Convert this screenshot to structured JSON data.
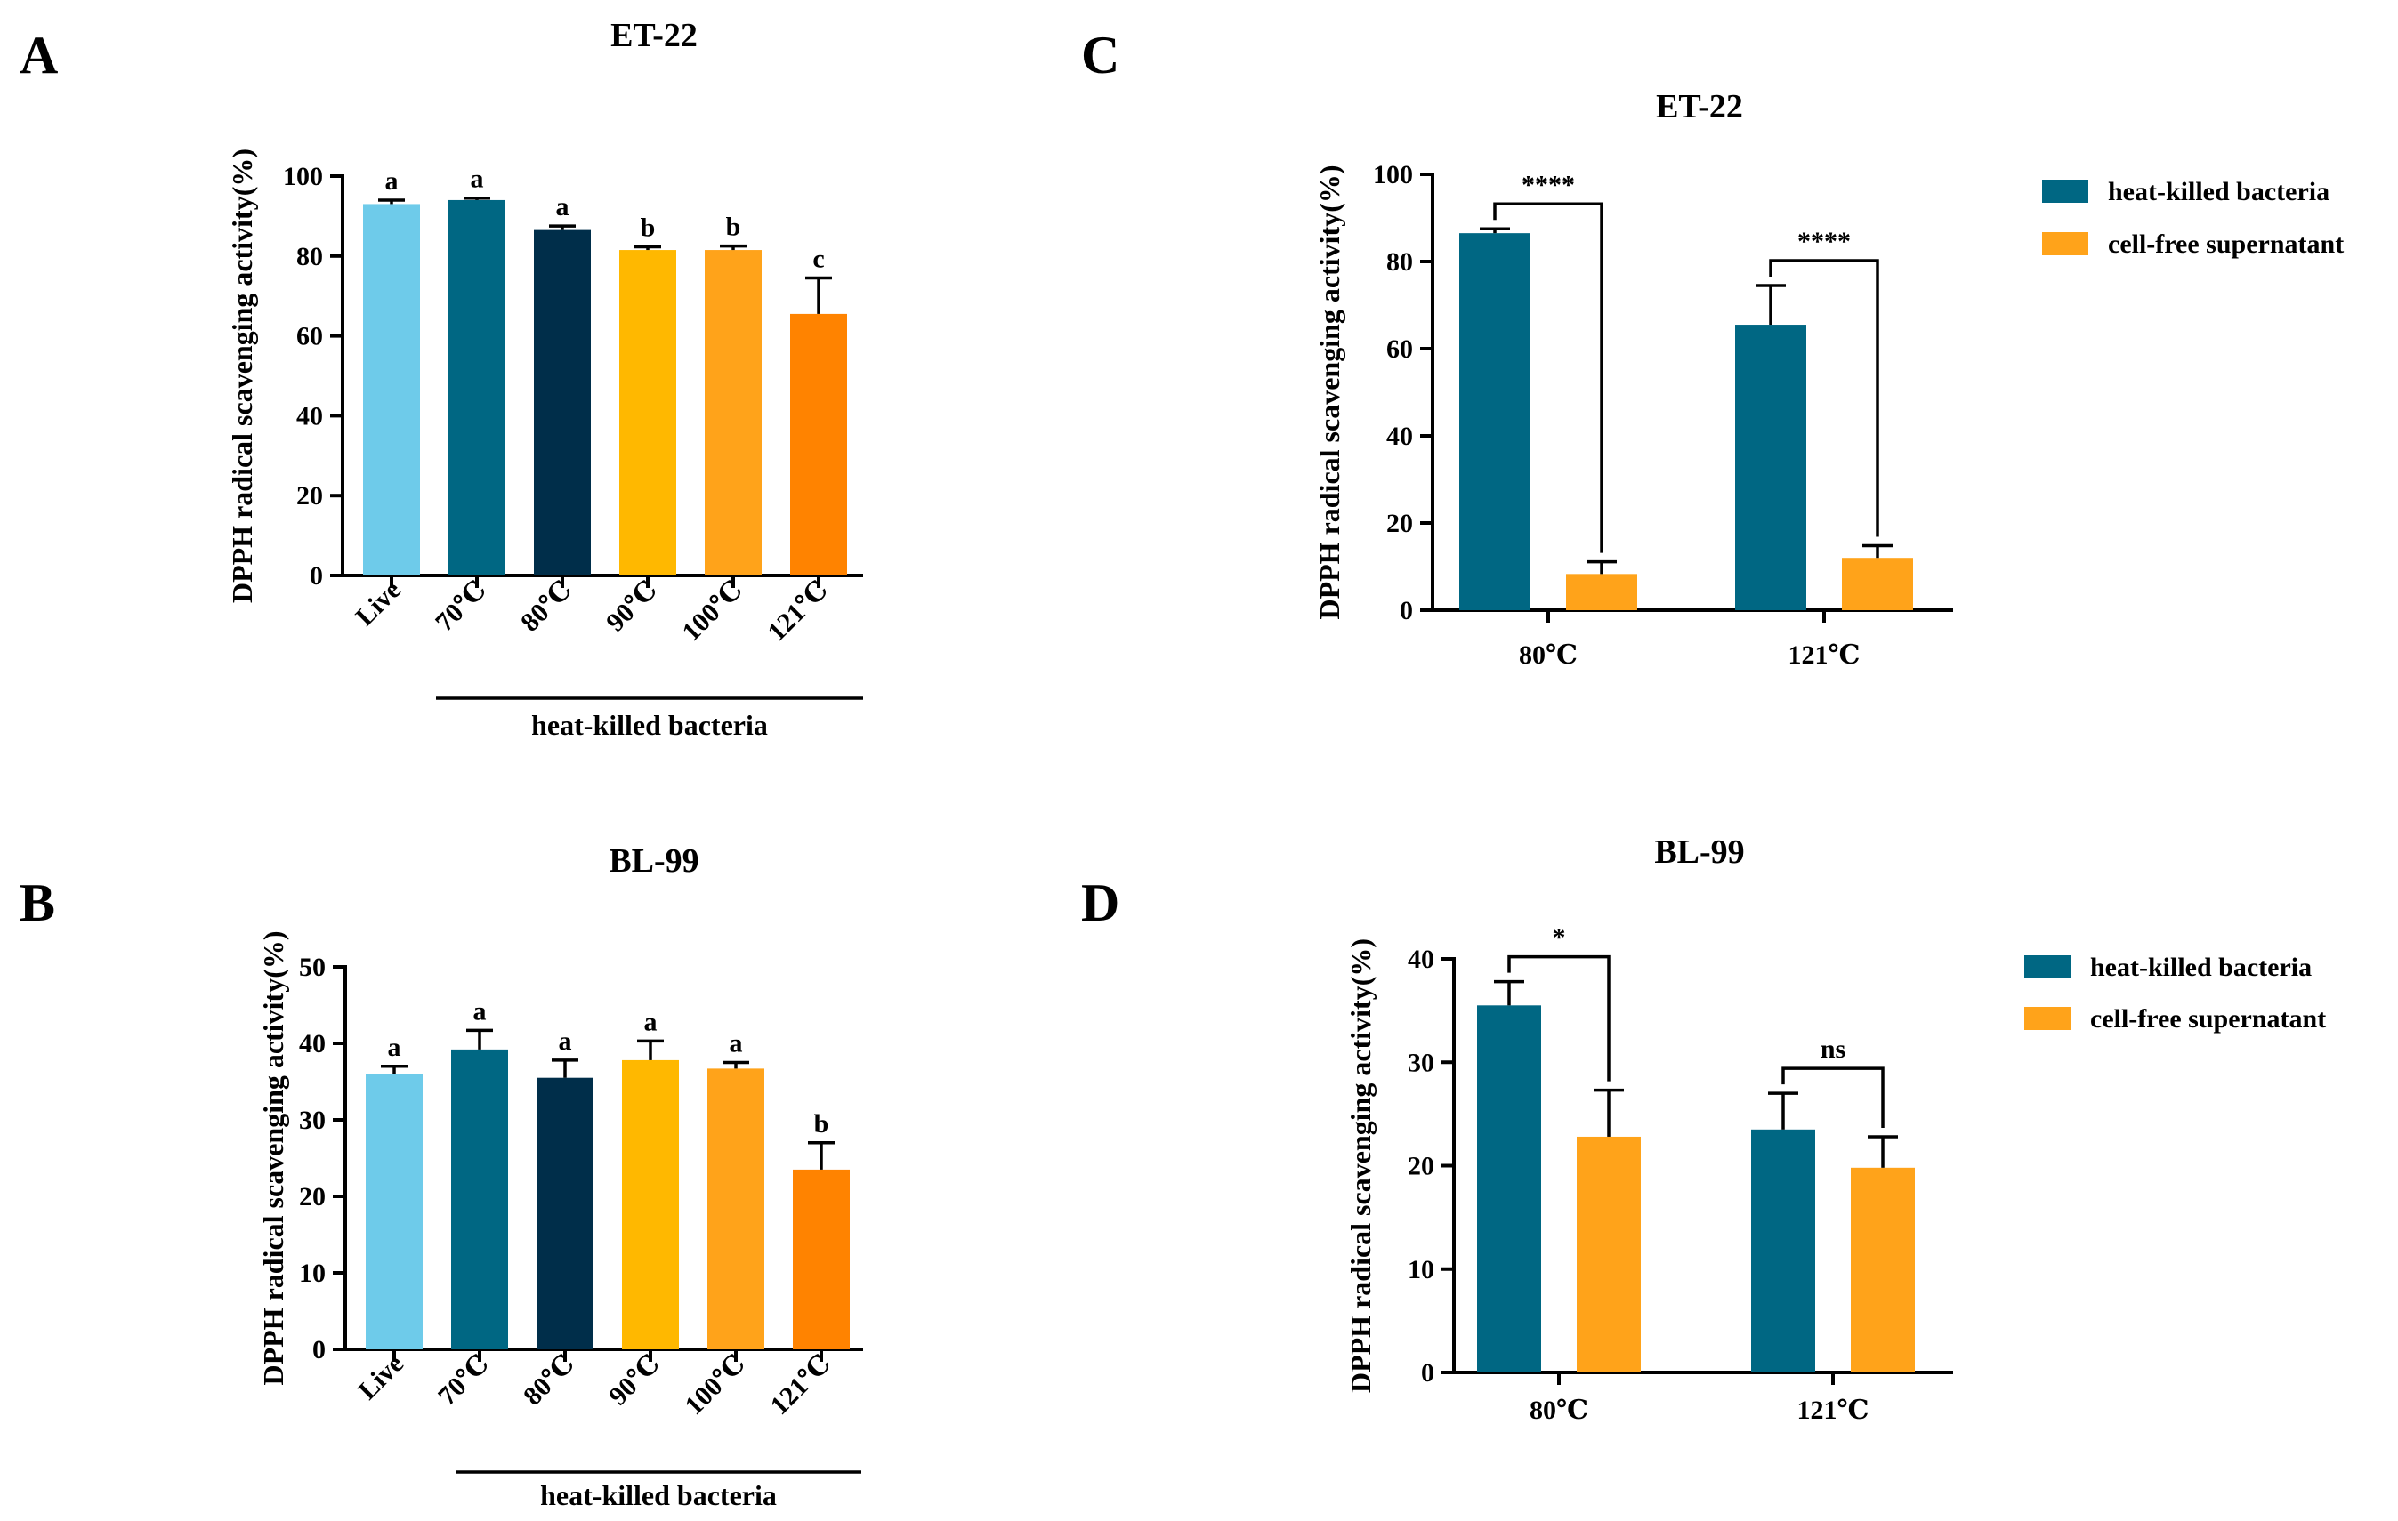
{
  "chart_data": [
    {
      "panel": "A",
      "type": "bar",
      "title": "ET-22",
      "ylabel": "DPPH radical scavenging activity(%)",
      "xlabel": "",
      "ylim": [
        0,
        100
      ],
      "yticks": [
        0,
        20,
        40,
        60,
        80,
        100
      ],
      "categories": [
        "Live",
        "70℃",
        "80℃",
        "90℃",
        "100℃",
        "121℃"
      ],
      "values": [
        93,
        94,
        86.5,
        81.5,
        81.5,
        65.5
      ],
      "errors": [
        1,
        0.5,
        1,
        0.8,
        1,
        9
      ],
      "sig_labels": [
        "a",
        "a",
        "a",
        "b",
        "b",
        "c"
      ],
      "colors": [
        "#6ecbea",
        "#006783",
        "#002e4a",
        "#ffb800",
        "#ffa31a",
        "#ff8300"
      ],
      "group_label": "heat-killed bacteria",
      "group_range": [
        1,
        5
      ]
    },
    {
      "panel": "B",
      "type": "bar",
      "title": "BL-99",
      "ylabel": "DPPH radical scavenging activity(%)",
      "xlabel": "",
      "ylim": [
        0,
        50
      ],
      "yticks": [
        0,
        10,
        20,
        30,
        40,
        50
      ],
      "categories": [
        "Live",
        "70℃",
        "80℃",
        "90℃",
        "100℃",
        "121℃"
      ],
      "values": [
        36,
        39.2,
        35.5,
        37.8,
        36.7,
        23.5
      ],
      "errors": [
        1,
        2.5,
        2.3,
        2.5,
        0.8,
        3.5
      ],
      "sig_labels": [
        "a",
        "a",
        "a",
        "a",
        "a",
        "b"
      ],
      "colors": [
        "#6ecbea",
        "#006783",
        "#002e4a",
        "#ffb800",
        "#ffa31a",
        "#ff8300"
      ],
      "group_label": "heat-killed bacteria",
      "group_range": [
        1,
        5
      ]
    },
    {
      "panel": "C",
      "type": "bar",
      "title": "ET-22",
      "ylabel": "DPPH radical scavenging activity(%)",
      "xlabel": "",
      "ylim": [
        0,
        100
      ],
      "yticks": [
        0,
        20,
        40,
        60,
        80,
        100
      ],
      "categories": [
        "80℃",
        "121℃"
      ],
      "series": [
        {
          "name": "heat-killed bacteria",
          "color": "#006783",
          "values": [
            86.5,
            65.5
          ],
          "errors": [
            1,
            9
          ]
        },
        {
          "name": "cell-free supernatant",
          "color": "#ffa31a",
          "values": [
            8.3,
            12
          ],
          "errors": [
            2.8,
            2.8
          ]
        }
      ],
      "significance": [
        "****",
        "****"
      ],
      "legend": "right"
    },
    {
      "panel": "D",
      "type": "bar",
      "title": "BL-99",
      "ylabel": "DPPH radical scavenging activity(%)",
      "xlabel": "",
      "ylim": [
        0,
        40
      ],
      "yticks": [
        0,
        10,
        20,
        30,
        40
      ],
      "categories": [
        "80℃",
        "121℃"
      ],
      "series": [
        {
          "name": "heat-killed bacteria",
          "color": "#006783",
          "values": [
            35.5,
            23.5
          ],
          "errors": [
            2.3,
            3.5
          ]
        },
        {
          "name": "cell-free supernatant",
          "color": "#ffa31a",
          "values": [
            22.8,
            19.8
          ],
          "errors": [
            4.5,
            3
          ]
        }
      ],
      "significance": [
        "*",
        "ns"
      ],
      "legend": "right"
    }
  ]
}
